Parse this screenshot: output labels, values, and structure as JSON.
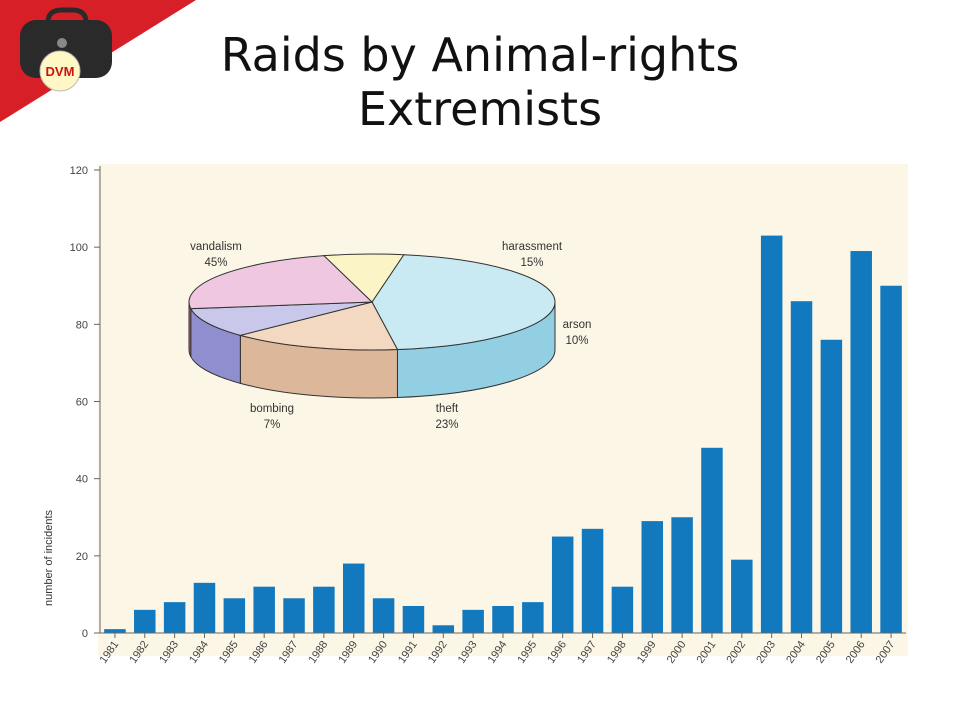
{
  "slide": {
    "title_line1": "Raids by Animal-rights",
    "title_line2": "Extremists",
    "badge_text": "DVM"
  },
  "colors": {
    "corner_red": "#d61f26",
    "bag": "#2a2a2a",
    "badge": "#fff7c4",
    "badge_text": "#cc1111",
    "plot_bg": "#fbf6e6",
    "bar": "#1279be",
    "axis": "#666666"
  },
  "chart_data": [
    {
      "type": "bar",
      "title": "",
      "xlabel": "",
      "ylabel": "number of incidents",
      "ylim": [
        0,
        120
      ],
      "yticks": [
        0,
        20,
        40,
        60,
        80,
        100,
        120
      ],
      "categories": [
        "1981",
        "1982",
        "1983",
        "1984",
        "1985",
        "1986",
        "1987",
        "1988",
        "1989",
        "1990",
        "1991",
        "1992",
        "1993",
        "1994",
        "1995",
        "1996",
        "1997",
        "1998",
        "1999",
        "2000",
        "2001",
        "2002",
        "2003",
        "2004",
        "2005",
        "2006",
        "2007"
      ],
      "values": [
        1,
        6,
        8,
        13,
        9,
        12,
        9,
        12,
        18,
        9,
        7,
        2,
        6,
        7,
        8,
        25,
        27,
        12,
        29,
        30,
        48,
        19,
        103,
        86,
        76,
        99,
        90
      ],
      "grid": false
    },
    {
      "type": "pie",
      "title": "",
      "slices": [
        {
          "label": "vandalism",
          "percent_label": "45%",
          "value": 45,
          "color": "#c9eaf3",
          "side_color": "#93cfe3"
        },
        {
          "label": "harassment",
          "percent_label": "15%",
          "value": 15,
          "color": "#f4d9c2",
          "side_color": "#ddb79a"
        },
        {
          "label": "arson",
          "percent_label": "10%",
          "value": 10,
          "color": "#c9c8ea",
          "side_color": "#8f8fd0"
        },
        {
          "label": "theft",
          "percent_label": "23%",
          "value": 23,
          "color": "#f0c7e0",
          "side_color": "#b9608f"
        },
        {
          "label": "bombing",
          "percent_label": "7%",
          "value": 7,
          "color": "#faf4c6",
          "side_color": "#e6dba6"
        }
      ]
    }
  ]
}
